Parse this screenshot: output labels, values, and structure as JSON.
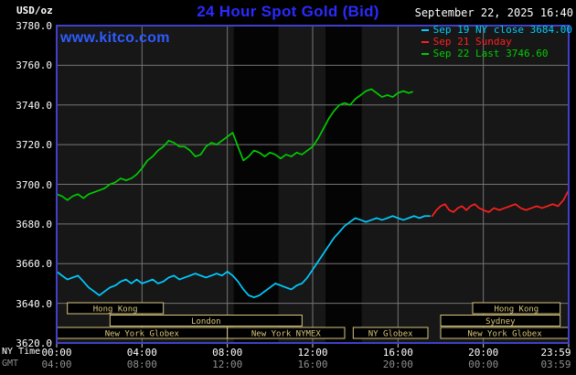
{
  "header": {
    "units_label": "USD/oz",
    "title": "24 Hour Spot Gold (Bid)",
    "datetime": "September 22, 2025 16:40",
    "site_link": "www.kitco.com"
  },
  "legend": {
    "items": [
      {
        "label": "Sep 19 NY close 3684.00",
        "color": "#00ccff"
      },
      {
        "label": "Sep 21 Sunday",
        "color": "#ff2020"
      },
      {
        "label": "Sep 22 Last 3746.60",
        "color": "#00cc00"
      }
    ]
  },
  "axes": {
    "ny_row_label": "NY Time",
    "gmt_row_label": "GMT",
    "y_ticks": [
      "3780.0",
      "3760.0",
      "3740.0",
      "3720.0",
      "3700.0",
      "3680.0",
      "3660.0",
      "3640.0",
      "3620.0"
    ],
    "x_ticks": [
      {
        "hour": 0,
        "ny": "00:00",
        "gmt": "04:00"
      },
      {
        "hour": 4,
        "ny": "04:00",
        "gmt": "08:00"
      },
      {
        "hour": 8,
        "ny": "08:00",
        "gmt": "12:00"
      },
      {
        "hour": 12,
        "ny": "12:00",
        "gmt": "16:00"
      },
      {
        "hour": 16,
        "ny": "16:00",
        "gmt": "20:00"
      },
      {
        "hour": 20,
        "ny": "20:00",
        "gmt": "00:00"
      },
      {
        "hour": 24,
        "ny": "23:59",
        "gmt": "03:59"
      }
    ]
  },
  "sessions": [
    {
      "row": 0,
      "label": "Hong Kong",
      "start": 0.5,
      "end": 5.0
    },
    {
      "row": 0,
      "label": "Hong Kong",
      "start": 19.5,
      "end": 23.6
    },
    {
      "row": 1,
      "label": "London",
      "start": 2.5,
      "end": 11.5
    },
    {
      "row": 1,
      "label": "Sydney",
      "start": 18.0,
      "end": 23.6
    },
    {
      "row": 2,
      "label": "New York Globex",
      "start": 0.0,
      "end": 8.0
    },
    {
      "row": 2,
      "label": "New York NYMEX",
      "start": 8.0,
      "end": 13.5
    },
    {
      "row": 2,
      "label": "NY Globex",
      "start": 13.9,
      "end": 17.4
    },
    {
      "row": 2,
      "label": "New York Globex",
      "start": 18.0,
      "end": 24.0
    }
  ],
  "colors": {
    "background": "#000000",
    "plot_background": "#171717",
    "band": "#040404",
    "frame": "#4040c8",
    "grid": "#757575",
    "title": "#2a2aff",
    "site_link": "#2e5cff",
    "text": "#ffffff",
    "gmt_text": "#8f8f8f",
    "session": "#d6c57e",
    "tick": "#cccccc"
  },
  "chart_data": {
    "type": "line",
    "title": "24 Hour Spot Gold (Bid)",
    "xlabel": "NY Time (hours)",
    "ylabel": "USD/oz",
    "x_range": [
      0,
      24
    ],
    "y_range": [
      3620,
      3780
    ],
    "y_gridlines": [
      3640,
      3660,
      3680,
      3700,
      3720,
      3740,
      3760
    ],
    "x_gridlines": [
      4,
      8,
      12,
      16,
      20
    ],
    "dark_bands": [
      [
        8.3,
        10.4
      ],
      [
        12.6,
        14.3
      ]
    ],
    "legend_position": "top-right",
    "grid": true,
    "series": [
      {
        "name": "Sep 19 NY close",
        "color": "#00ccff",
        "last_value": 3684.0,
        "points": [
          [
            0,
            3656
          ],
          [
            0.25,
            3654
          ],
          [
            0.5,
            3652
          ],
          [
            0.75,
            3653
          ],
          [
            1,
            3654
          ],
          [
            1.25,
            3651
          ],
          [
            1.5,
            3648
          ],
          [
            1.75,
            3646
          ],
          [
            2,
            3644
          ],
          [
            2.25,
            3646
          ],
          [
            2.5,
            3648
          ],
          [
            2.75,
            3649
          ],
          [
            3,
            3651
          ],
          [
            3.25,
            3652
          ],
          [
            3.5,
            3650
          ],
          [
            3.75,
            3652
          ],
          [
            4,
            3650
          ],
          [
            4.25,
            3651
          ],
          [
            4.5,
            3652
          ],
          [
            4.75,
            3650
          ],
          [
            5,
            3651
          ],
          [
            5.25,
            3653
          ],
          [
            5.5,
            3654
          ],
          [
            5.75,
            3652
          ],
          [
            6,
            3653
          ],
          [
            6.25,
            3654
          ],
          [
            6.5,
            3655
          ],
          [
            6.75,
            3654
          ],
          [
            7,
            3653
          ],
          [
            7.25,
            3654
          ],
          [
            7.5,
            3655
          ],
          [
            7.75,
            3654
          ],
          [
            8,
            3656
          ],
          [
            8.25,
            3654
          ],
          [
            8.5,
            3651
          ],
          [
            8.75,
            3647
          ],
          [
            9,
            3644
          ],
          [
            9.25,
            3643
          ],
          [
            9.5,
            3644
          ],
          [
            9.75,
            3646
          ],
          [
            10,
            3648
          ],
          [
            10.25,
            3650
          ],
          [
            10.5,
            3649
          ],
          [
            10.75,
            3648
          ],
          [
            11,
            3647
          ],
          [
            11.25,
            3649
          ],
          [
            11.5,
            3650
          ],
          [
            11.75,
            3653
          ],
          [
            12,
            3657
          ],
          [
            12.25,
            3661
          ],
          [
            12.5,
            3665
          ],
          [
            12.75,
            3669
          ],
          [
            13,
            3673
          ],
          [
            13.25,
            3676
          ],
          [
            13.5,
            3679
          ],
          [
            13.75,
            3681
          ],
          [
            14,
            3683
          ],
          [
            14.25,
            3682
          ],
          [
            14.5,
            3681
          ],
          [
            14.75,
            3682
          ],
          [
            15,
            3683
          ],
          [
            15.25,
            3682
          ],
          [
            15.5,
            3683
          ],
          [
            15.75,
            3684
          ],
          [
            16,
            3683
          ],
          [
            16.25,
            3682
          ],
          [
            16.5,
            3683
          ],
          [
            16.75,
            3684
          ],
          [
            17,
            3683
          ],
          [
            17.25,
            3684
          ],
          [
            17.5,
            3684
          ]
        ]
      },
      {
        "name": "Sep 21 Sunday",
        "color": "#ff2020",
        "points": [
          [
            17.6,
            3684
          ],
          [
            17.8,
            3687
          ],
          [
            18,
            3689
          ],
          [
            18.2,
            3690
          ],
          [
            18.4,
            3687
          ],
          [
            18.6,
            3686
          ],
          [
            18.8,
            3688
          ],
          [
            19,
            3689
          ],
          [
            19.2,
            3687
          ],
          [
            19.4,
            3689
          ],
          [
            19.6,
            3690
          ],
          [
            19.8,
            3688
          ],
          [
            20,
            3687
          ],
          [
            20.25,
            3686
          ],
          [
            20.5,
            3688
          ],
          [
            20.75,
            3687
          ],
          [
            21,
            3688
          ],
          [
            21.25,
            3689
          ],
          [
            21.5,
            3690
          ],
          [
            21.75,
            3688
          ],
          [
            22,
            3687
          ],
          [
            22.25,
            3688
          ],
          [
            22.5,
            3689
          ],
          [
            22.75,
            3688
          ],
          [
            23,
            3689
          ],
          [
            23.25,
            3690
          ],
          [
            23.5,
            3689
          ],
          [
            23.75,
            3692
          ],
          [
            24,
            3697
          ]
        ]
      },
      {
        "name": "Sep 22 Last",
        "color": "#00cc00",
        "last_value": 3746.6,
        "points": [
          [
            0,
            3695
          ],
          [
            0.25,
            3694
          ],
          [
            0.5,
            3692
          ],
          [
            0.75,
            3694
          ],
          [
            1,
            3695
          ],
          [
            1.25,
            3693
          ],
          [
            1.5,
            3695
          ],
          [
            1.75,
            3696
          ],
          [
            2,
            3697
          ],
          [
            2.25,
            3698
          ],
          [
            2.5,
            3700
          ],
          [
            2.75,
            3701
          ],
          [
            3,
            3703
          ],
          [
            3.25,
            3702
          ],
          [
            3.5,
            3703
          ],
          [
            3.75,
            3705
          ],
          [
            4,
            3708
          ],
          [
            4.25,
            3712
          ],
          [
            4.5,
            3714
          ],
          [
            4.75,
            3717
          ],
          [
            5,
            3719
          ],
          [
            5.25,
            3722
          ],
          [
            5.5,
            3721
          ],
          [
            5.75,
            3719
          ],
          [
            6,
            3719
          ],
          [
            6.25,
            3717
          ],
          [
            6.5,
            3714
          ],
          [
            6.75,
            3715
          ],
          [
            7,
            3719
          ],
          [
            7.25,
            3721
          ],
          [
            7.5,
            3720
          ],
          [
            7.75,
            3722
          ],
          [
            8,
            3724
          ],
          [
            8.25,
            3726
          ],
          [
            8.5,
            3719
          ],
          [
            8.75,
            3712
          ],
          [
            9,
            3714
          ],
          [
            9.25,
            3717
          ],
          [
            9.5,
            3716
          ],
          [
            9.75,
            3714
          ],
          [
            10,
            3716
          ],
          [
            10.25,
            3715
          ],
          [
            10.5,
            3713
          ],
          [
            10.75,
            3715
          ],
          [
            11,
            3714
          ],
          [
            11.25,
            3716
          ],
          [
            11.5,
            3715
          ],
          [
            11.75,
            3717
          ],
          [
            12,
            3719
          ],
          [
            12.25,
            3723
          ],
          [
            12.5,
            3728
          ],
          [
            12.75,
            3733
          ],
          [
            13,
            3737
          ],
          [
            13.25,
            3740
          ],
          [
            13.5,
            3741
          ],
          [
            13.75,
            3740
          ],
          [
            14,
            3743
          ],
          [
            14.25,
            3745
          ],
          [
            14.5,
            3747
          ],
          [
            14.75,
            3748
          ],
          [
            15,
            3746
          ],
          [
            15.25,
            3744
          ],
          [
            15.5,
            3745
          ],
          [
            15.75,
            3744
          ],
          [
            16,
            3746
          ],
          [
            16.25,
            3747
          ],
          [
            16.5,
            3746
          ],
          [
            16.67,
            3746.6
          ]
        ]
      }
    ]
  }
}
